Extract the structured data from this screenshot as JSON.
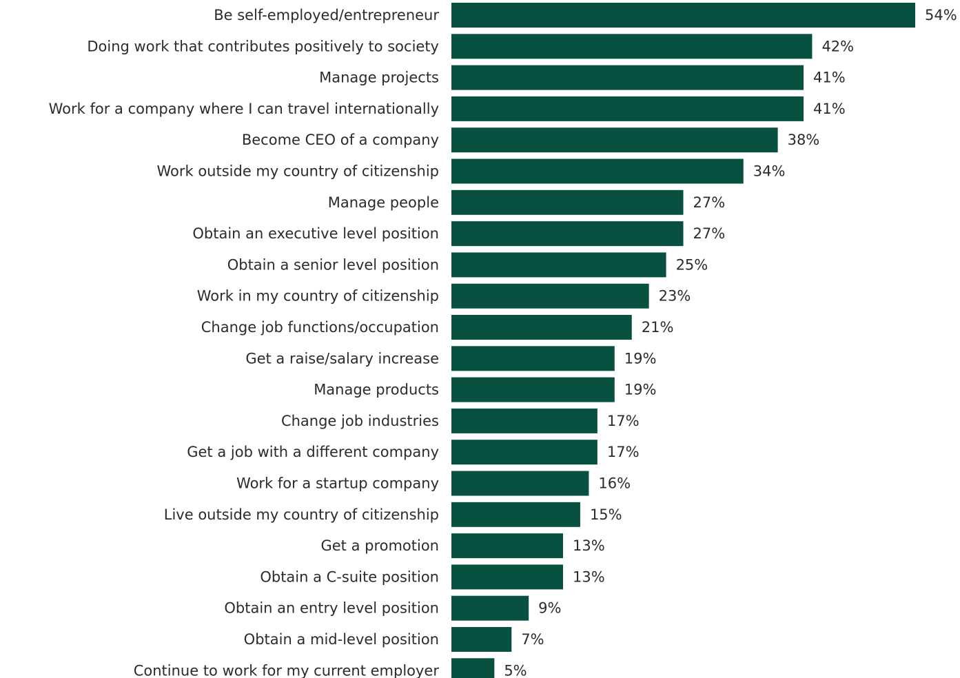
{
  "chart_data": {
    "type": "bar",
    "orientation": "horizontal",
    "title": "",
    "xlabel": "",
    "ylabel": "",
    "grid": false,
    "value_format": "percent",
    "bar_color": "#08503f",
    "xlim": [
      0,
      54
    ],
    "categories": [
      "Be self-employed/entrepreneur",
      "Doing work that contributes positively to society",
      "Manage projects",
      "Work for a company where I can travel internationally",
      "Become CEO of a company",
      "Work outside my country of citizenship",
      "Manage people",
      "Obtain an executive level position",
      "Obtain a senior level position",
      "Work in my country of citizenship",
      "Change job functions/occupation",
      "Get a raise/salary increase",
      "Manage products",
      "Change job industries",
      "Get a job with a different company",
      "Work for a startup company",
      "Live outside my country of citizenship",
      "Get a promotion",
      "Obtain a C-suite position",
      "Obtain an entry level position",
      "Obtain a mid-level position",
      "Continue to work for my current employer"
    ],
    "values": [
      54,
      42,
      41,
      41,
      38,
      34,
      27,
      27,
      25,
      23,
      21,
      19,
      19,
      17,
      17,
      16,
      15,
      13,
      13,
      9,
      7,
      5
    ],
    "value_labels": [
      "54%",
      "42%",
      "41%",
      "41%",
      "38%",
      "34%",
      "27%",
      "27%",
      "25%",
      "23%",
      "21%",
      "19%",
      "19%",
      "17%",
      "17%",
      "16%",
      "15%",
      "13%",
      "13%",
      "9%",
      "7%",
      "5%"
    ]
  }
}
